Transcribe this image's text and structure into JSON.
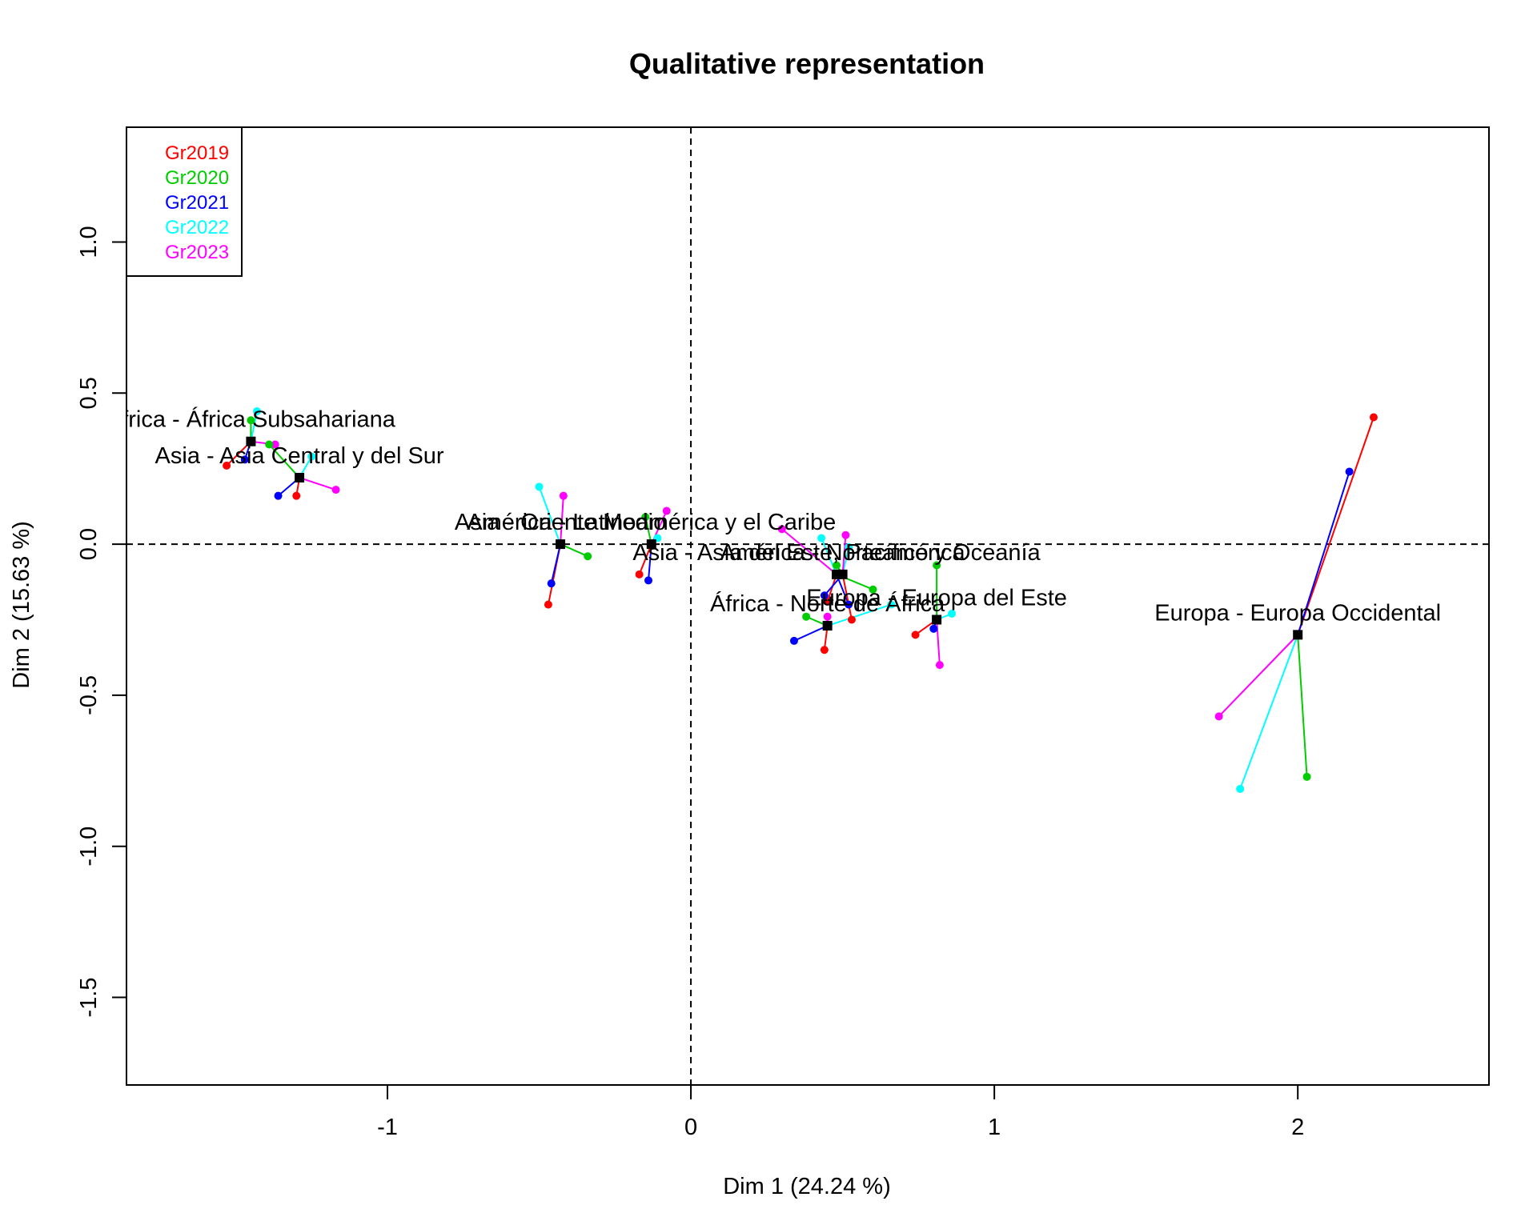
{
  "chart_data": {
    "type": "scatter",
    "title": "Qualitative representation",
    "xlabel": "Dim 1 (24.24 %)",
    "ylabel": "Dim 2 (15.63 %)",
    "xlim": [
      -1.86,
      2.63
    ],
    "ylim": [
      -1.79,
      1.38
    ],
    "x_ticks": [
      -1,
      0,
      1,
      2
    ],
    "y_ticks": [
      -1.5,
      -1.0,
      -0.5,
      0.0,
      0.5,
      1.0
    ],
    "x_tick_labels": [
      "-1",
      "0",
      "1",
      "2"
    ],
    "y_tick_labels": [
      "-1.5",
      "-1.0",
      "-0.5",
      "0.0",
      "0.5",
      "1.0"
    ],
    "reference_lines": {
      "x": 0,
      "y": 0,
      "style": "dashed"
    },
    "grid": false,
    "legend": {
      "position": "top-left"
    },
    "series": [
      {
        "name": "Gr2019",
        "color": "#ff0000"
      },
      {
        "name": "Gr2020",
        "color": "#00cd00"
      },
      {
        "name": "Gr2021",
        "color": "#0000ff"
      },
      {
        "name": "Gr2022",
        "color": "#00ffff"
      },
      {
        "name": "Gr2023",
        "color": "#ff00ff"
      }
    ],
    "categories": [
      {
        "label": "África - África Subsahariana",
        "center": [
          -1.45,
          0.34
        ],
        "points": [
          [
            -1.53,
            0.26
          ],
          [
            -1.45,
            0.41
          ],
          [
            -1.47,
            0.28
          ],
          [
            -1.43,
            0.44
          ],
          [
            -1.37,
            0.33
          ]
        ]
      },
      {
        "label": "Asia - Asia Central y del Sur",
        "center": [
          -1.29,
          0.22
        ],
        "points": [
          [
            -1.3,
            0.16
          ],
          [
            -1.39,
            0.33
          ],
          [
            -1.36,
            0.16
          ],
          [
            -1.25,
            0.29
          ],
          [
            -1.17,
            0.18
          ]
        ]
      },
      {
        "label": "Asia - Oriente Medio",
        "center": [
          -0.43,
          0.0
        ],
        "points": [
          [
            -0.47,
            -0.2
          ],
          [
            -0.34,
            -0.04
          ],
          [
            -0.46,
            -0.13
          ],
          [
            -0.5,
            0.19
          ],
          [
            -0.42,
            0.16
          ]
        ]
      },
      {
        "label": "América - Latinoamérica y el Caribe",
        "center": [
          -0.13,
          0.0
        ],
        "points": [
          [
            -0.17,
            -0.1
          ],
          [
            -0.15,
            0.09
          ],
          [
            -0.14,
            -0.12
          ],
          [
            -0.11,
            0.02
          ],
          [
            -0.08,
            0.11
          ]
        ]
      },
      {
        "label": "Asia - Asia del Este, Pacífico y Oceanía",
        "center": [
          0.48,
          -0.1
        ],
        "points": [
          [
            0.45,
            -0.19
          ],
          [
            0.6,
            -0.15
          ],
          [
            0.52,
            -0.2
          ],
          [
            0.43,
            0.02
          ],
          [
            0.3,
            0.05
          ]
        ]
      },
      {
        "label": "América - Norteamérica",
        "center": [
          0.5,
          -0.1
        ],
        "points": [
          [
            0.53,
            -0.25
          ],
          [
            0.48,
            -0.07
          ],
          [
            0.44,
            -0.17
          ],
          [
            0.52,
            -0.01
          ],
          [
            0.51,
            0.03
          ]
        ]
      },
      {
        "label": "África - Norte de África",
        "center": [
          0.45,
          -0.27
        ],
        "points": [
          [
            0.44,
            -0.35
          ],
          [
            0.38,
            -0.24
          ],
          [
            0.34,
            -0.32
          ],
          [
            0.66,
            -0.2
          ],
          [
            0.45,
            -0.24
          ]
        ]
      },
      {
        "label": "Europa - Europa del Este",
        "center": [
          0.81,
          -0.25
        ],
        "points": [
          [
            0.74,
            -0.3
          ],
          [
            0.81,
            -0.07
          ],
          [
            0.8,
            -0.28
          ],
          [
            0.86,
            -0.23
          ],
          [
            0.82,
            -0.4
          ]
        ]
      },
      {
        "label": "Europa - Europa Occidental",
        "center": [
          2.0,
          -0.3
        ],
        "points": [
          [
            2.25,
            0.42
          ],
          [
            2.03,
            -0.77
          ],
          [
            2.17,
            0.24
          ],
          [
            1.81,
            -0.81
          ],
          [
            1.74,
            -0.57
          ]
        ]
      }
    ]
  }
}
